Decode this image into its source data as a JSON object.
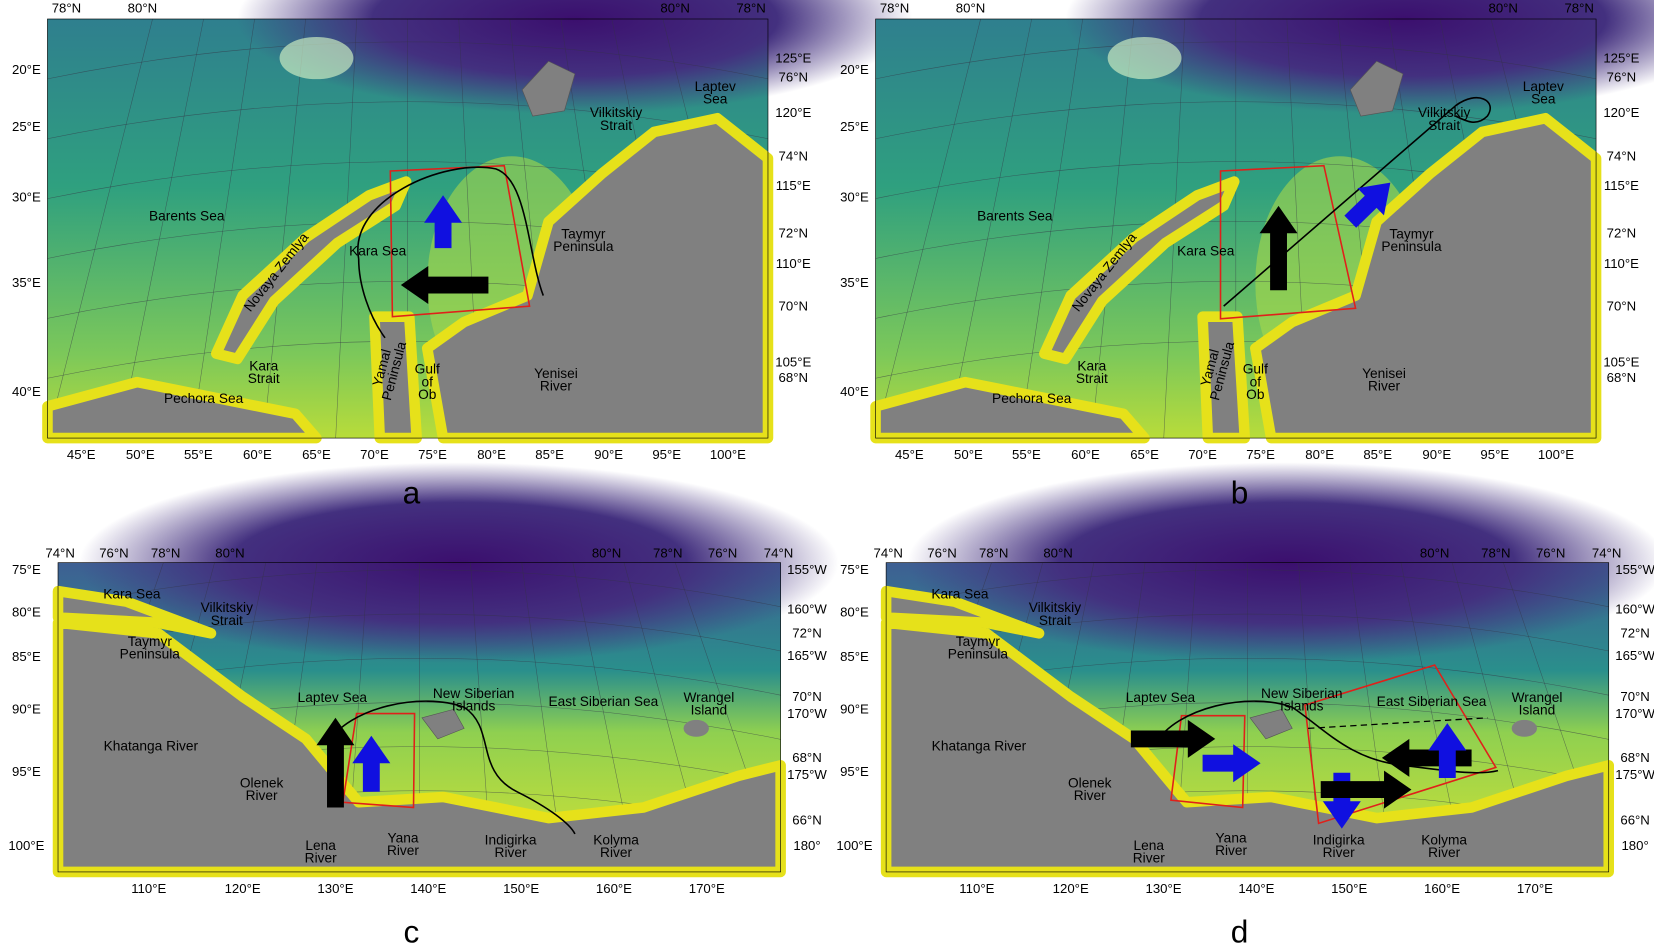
{
  "panels": [
    {
      "letter": "a",
      "top_labels": [
        "78°N",
        "80°N",
        "80°N",
        "78°N"
      ],
      "left_labels": [
        "20°E",
        "25°E",
        "30°E",
        "35°E",
        "40°E"
      ],
      "right_labels": [
        "125°E",
        "76°N",
        "120°E",
        "74°N",
        "115°E",
        "72°N",
        "110°E",
        "70°N",
        "105°E",
        "68°N"
      ],
      "bottom_labels": [
        "45°E",
        "50°E",
        "55°E",
        "60°E",
        "65°E",
        "70°E",
        "75°E",
        "80°E",
        "85°E",
        "90°E",
        "95°E",
        "100°E"
      ],
      "places": [
        "Laptev\nSea",
        "Vilkitskiy\nStrait",
        "Barents Sea",
        "Novaya Zemlya",
        "Kara Sea",
        "Taymyr\nPeninsula",
        "Kara\nStrait",
        "Pechora Sea",
        "Yamal\nPeninsula",
        "Gulf\nof\nOb",
        "Yenisei\nRiver"
      ]
    },
    {
      "letter": "b",
      "top_labels": [
        "78°N",
        "80°N",
        "80°N",
        "78°N"
      ],
      "left_labels": [
        "20°E",
        "25°E",
        "30°E",
        "35°E",
        "40°E"
      ],
      "right_labels": [
        "125°E",
        "76°N",
        "120°E",
        "74°N",
        "115°E",
        "72°N",
        "110°E",
        "70°N",
        "105°E",
        "68°N"
      ],
      "bottom_labels": [
        "45°E",
        "50°E",
        "55°E",
        "60°E",
        "65°E",
        "70°E",
        "75°E",
        "80°E",
        "85°E",
        "90°E",
        "95°E",
        "100°E"
      ],
      "places": [
        "Laptev\nSea",
        "Vilkitskiy\nStrait",
        "Barents Sea",
        "Novaya Zemlya",
        "Kara Sea",
        "Taymyr\nPeninsula",
        "Kara\nStrait",
        "Pechora Sea",
        "Yamal\nPeninsula",
        "Gulf\nof\nOb",
        "Yenisei\nRiver"
      ]
    },
    {
      "letter": "c",
      "top_labels": [
        "74°N",
        "76°N",
        "78°N",
        "80°N",
        "80°N",
        "78°N",
        "76°N",
        "74°N"
      ],
      "left_labels": [
        "75°E",
        "80°E",
        "85°E",
        "90°E",
        "95°E",
        "100°E"
      ],
      "right_labels": [
        "155°W",
        "160°W",
        "72°N",
        "165°W",
        "70°N",
        "170°W",
        "68°N",
        "175°W",
        "66°N",
        "180°"
      ],
      "bottom_labels": [
        "110°E",
        "120°E",
        "130°E",
        "140°E",
        "150°E",
        "160°E",
        "170°E"
      ],
      "places": [
        "Kara Sea",
        "Vilkitskiy\nStrait",
        "Taymyr\nPeninsula",
        "Laptev Sea",
        "New Siberian\nIslands",
        "East Siberian Sea",
        "Wrangel\nIsland",
        "Khatanga River",
        "Olenek\nRiver",
        "Lena\nRiver",
        "Yana\nRiver",
        "Indigirka\nRiver",
        "Kolyma\nRiver"
      ]
    },
    {
      "letter": "d",
      "top_labels": [
        "74°N",
        "76°N",
        "78°N",
        "80°N",
        "80°N",
        "78°N",
        "76°N",
        "74°N"
      ],
      "left_labels": [
        "75°E",
        "80°E",
        "85°E",
        "90°E",
        "95°E",
        "100°E"
      ],
      "right_labels": [
        "155°W",
        "160°W",
        "72°N",
        "165°W",
        "70°N",
        "170°W",
        "68°N",
        "175°W",
        "66°N",
        "180°"
      ],
      "bottom_labels": [
        "110°E",
        "120°E",
        "130°E",
        "140°E",
        "150°E",
        "160°E",
        "170°E"
      ],
      "places": [
        "Kara Sea",
        "Vilkitskiy\nStrait",
        "Taymyr\nPeninsula",
        "Laptev Sea",
        "New Siberian\nIslands",
        "East Siberian Sea",
        "Wrangel\nIsland",
        "Khatanga River",
        "Olenek\nRiver",
        "Lena\nRiver",
        "Yana\nRiver",
        "Indigirka\nRiver",
        "Kolyma\nRiver"
      ]
    }
  ]
}
